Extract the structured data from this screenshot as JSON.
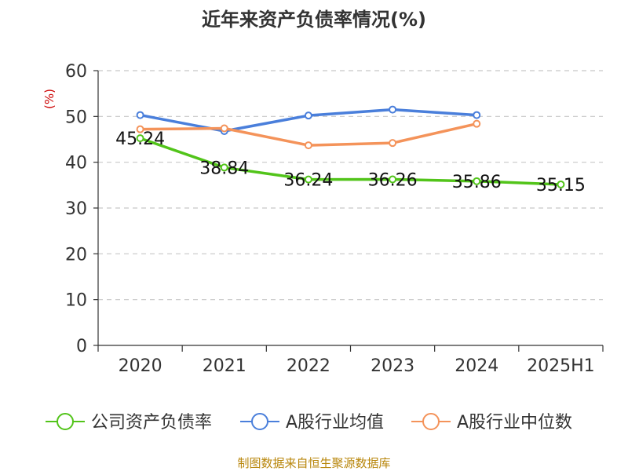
{
  "chart_data": {
    "type": "line",
    "title": "近年来资产负债率情况(%)",
    "ylabel": "(%)",
    "xlabel": "",
    "categories": [
      "2020",
      "2021",
      "2022",
      "2023",
      "2024",
      "2025H1"
    ],
    "ylim": [
      0,
      60
    ],
    "yticks": [
      "0",
      "10",
      "20",
      "30",
      "40",
      "50",
      "60"
    ],
    "grid": true,
    "legend_position": "bottom",
    "series": [
      {
        "name": "公司资产负债率",
        "color": "#52c41a",
        "values": [
          45.24,
          38.84,
          36.24,
          36.26,
          35.86,
          35.15
        ],
        "labels": [
          "45.24",
          "38.84",
          "36.24",
          "36.26",
          "35.86",
          "35.15"
        ]
      },
      {
        "name": "A股行业均值",
        "color": "#4a7fdb",
        "values": [
          50.3,
          46.8,
          50.2,
          51.5,
          50.3,
          null
        ]
      },
      {
        "name": "A股行业中位数",
        "color": "#f4935a",
        "values": [
          47.2,
          47.4,
          43.7,
          44.2,
          48.4,
          null
        ]
      }
    ],
    "source": "制图数据来自恒生聚源数据库"
  }
}
